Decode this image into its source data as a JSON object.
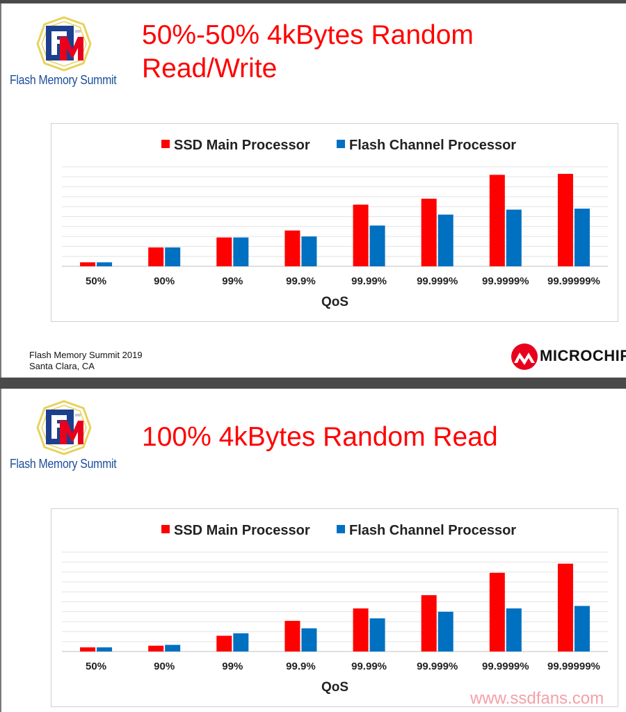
{
  "logo": {
    "text": "Flash Memory Summit",
    "colors": {
      "blue": "#1c3f8f",
      "red": "#e8001c",
      "gold": "#e8d25a"
    }
  },
  "slides": [
    {
      "title_line1": "50%-50% 4kBytes Random",
      "title_line2": "Read/Write",
      "footer_line1": "Flash Memory Summit 2019",
      "footer_line2": "Santa Clara, CA",
      "brand": "MICROCHIP"
    },
    {
      "title_line1": "100% 4kBytes Random Read",
      "watermark": "www.ssdfans.com"
    }
  ],
  "chart_data": [
    {
      "type": "bar",
      "categories": [
        "50%",
        "90%",
        "99%",
        "99.9%",
        "99.99%",
        "99.999%",
        "99.9999%",
        "99.99999%"
      ],
      "series": [
        {
          "name": "SSD Main Processor",
          "color": "#ff0000",
          "values": [
            0.4,
            1.9,
            2.9,
            3.6,
            6.2,
            6.8,
            9.2,
            9.3
          ]
        },
        {
          "name": "Flash Channel Processor",
          "color": "#0070c0",
          "values": [
            0.4,
            1.9,
            2.9,
            3.0,
            4.1,
            5.2,
            5.7,
            5.8
          ]
        }
      ],
      "xlabel": "QoS",
      "ylabel": "",
      "ylim": [
        0,
        10
      ],
      "grid": true,
      "legend": "top"
    },
    {
      "type": "bar",
      "categories": [
        "50%",
        "90%",
        "99%",
        "99.9%",
        "99.99%",
        "99.999%",
        "99.9999%",
        "99.99999%"
      ],
      "series": [
        {
          "name": "SSD Main Processor",
          "color": "#ff0000",
          "values": [
            0.25,
            0.35,
            0.95,
            1.85,
            2.6,
            3.4,
            4.75,
            5.3
          ]
        },
        {
          "name": "Flash Channel Processor",
          "color": "#0070c0",
          "values": [
            0.25,
            0.4,
            1.1,
            1.4,
            2.0,
            2.4,
            2.6,
            2.75
          ]
        }
      ],
      "xlabel": "QoS",
      "ylabel": "",
      "ylim": [
        0,
        6
      ],
      "grid": true,
      "legend": "top"
    }
  ]
}
